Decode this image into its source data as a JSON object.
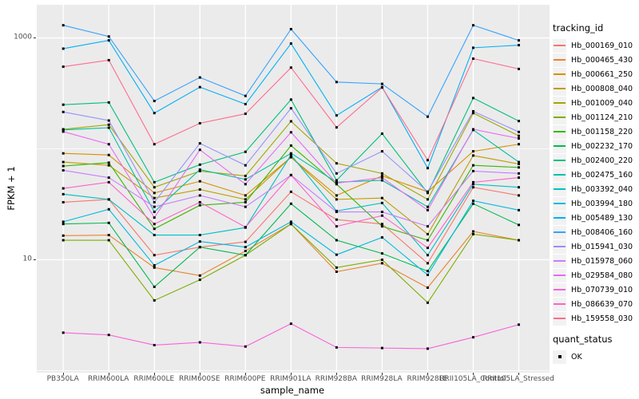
{
  "figure": {
    "axes": {
      "x": {
        "title": "sample_name"
      },
      "y": {
        "title": "FPKM + 1",
        "scale": "log10",
        "ticks": [
          {
            "label": "1000",
            "value": 1000
          },
          {
            "label": "10",
            "value": 10
          }
        ]
      }
    },
    "legend": {
      "tracking_title": "tracking_id",
      "quant_title": "quant_status",
      "quant_items": [
        {
          "label": "OK",
          "marker": "black-square-point-icon"
        }
      ]
    },
    "style": {
      "panel_bg": "#EBEBEB",
      "grid_color": "#FFFFFF",
      "tick_text_color": "#4D4D4D",
      "point_color": "#000000"
    }
  },
  "chart_data": {
    "type": "line",
    "title": "",
    "xlabel": "sample_name",
    "ylabel": "FPKM + 1",
    "yscale": "log10",
    "ylim": [
      1.4,
      1600
    ],
    "grid": {
      "major_y": [
        10,
        1000
      ],
      "minor_y": [
        1,
        100
      ],
      "major_x": "every-category"
    },
    "legend_position": "right",
    "point_shape": "filled-black-square",
    "quant_status_all_points": "OK",
    "x": [
      "PB350LA",
      "RRIM600LA",
      "RRIM600LE",
      "RRIM600SE",
      "RRIM600PE",
      "RRIM901LA",
      "RRIM928BA",
      "RRIM928LA",
      "RRIM928LE",
      "RRII105LA_Control",
      "RRII105LA_Stressed"
    ],
    "series": [
      {
        "name": "Hb_000169_010",
        "color": "#F8766D",
        "values": [
          33,
          35,
          11,
          13,
          14.5,
          41,
          23,
          21,
          9.3,
          45,
          38
        ]
      },
      {
        "name": "Hb_000465_430",
        "color": "#EA8331",
        "values": [
          16.5,
          16.7,
          8.5,
          7.2,
          12,
          21,
          7.8,
          9.3,
          5.6,
          18,
          15
        ]
      },
      {
        "name": "Hb_000661_250",
        "color": "#D89000",
        "values": [
          91,
          88,
          40,
          51,
          38,
          84,
          38,
          57,
          41,
          95,
          110
        ]
      },
      {
        "name": "Hb_000808_040",
        "color": "#C09B00",
        "values": [
          76,
          71,
          36,
          43,
          35,
          84,
          35,
          36,
          17,
          87,
          73
        ]
      },
      {
        "name": "Hb_001009_040",
        "color": "#A3A500",
        "values": [
          150,
          165,
          45,
          63,
          57,
          177,
          74,
          60,
          35,
          210,
          131
        ]
      },
      {
        "name": "Hb_001124_210",
        "color": "#7CAE00",
        "values": [
          15,
          15,
          4.3,
          6.6,
          11,
          21,
          8.5,
          10,
          4.1,
          17,
          15
        ]
      },
      {
        "name": "Hb_001158_220",
        "color": "#39B600",
        "values": [
          70,
          75,
          19,
          31,
          33,
          107,
          48,
          20,
          15,
          71,
          68
        ]
      },
      {
        "name": "Hb_002232_170",
        "color": "#00BB4E",
        "values": [
          21,
          21.5,
          5.7,
          13,
          11,
          32,
          15,
          11.4,
          7.9,
          32,
          20.6
        ]
      },
      {
        "name": "Hb_002400_220",
        "color": "#00BF7D",
        "values": [
          250,
          262,
          50,
          72,
          94,
          278,
          52,
          137,
          40,
          287,
          178
        ]
      },
      {
        "name": "Hb_002475_160",
        "color": "#00C1A3",
        "values": [
          148,
          155,
          27,
          65,
          53,
          91,
          50,
          52,
          30,
          148,
          76
        ]
      },
      {
        "name": "Hb_003392_040",
        "color": "#00BFC4",
        "values": [
          39,
          35,
          16.7,
          16.7,
          19.5,
          88,
          27.5,
          32.5,
          11,
          48,
          45
        ]
      },
      {
        "name": "Hb_003994_180",
        "color": "#00BADE",
        "values": [
          22,
          28.5,
          8.9,
          14.6,
          13,
          22,
          11.1,
          15.9,
          7.3,
          34,
          28
        ]
      },
      {
        "name": "Hb_005489_130",
        "color": "#00B0F6",
        "values": [
          800,
          950,
          210,
          360,
          253,
          890,
          200,
          360,
          67,
          815,
          860
        ]
      },
      {
        "name": "Hb_008406_160",
        "color": "#35A2FF",
        "values": [
          1300,
          1030,
          270,
          440,
          300,
          1200,
          400,
          385,
          195,
          1300,
          950
        ]
      },
      {
        "name": "Hb_015941_030",
        "color": "#9590FF",
        "values": [
          215,
          180,
          33,
          112,
          71,
          232,
          60,
          95,
          41,
          218,
          142
        ]
      },
      {
        "name": "Hb_015978_060",
        "color": "#C77CFF",
        "values": [
          64,
          55,
          30,
          38,
          30,
          58,
          27,
          27,
          20,
          63,
          60
        ]
      },
      {
        "name": "Hb_029584_080",
        "color": "#E76BF3",
        "values": [
          143,
          110,
          24,
          98,
          48,
          141,
          49,
          55,
          28,
          150,
          124
        ]
      },
      {
        "name": "Hb_070739_010",
        "color": "#FA62DB",
        "values": [
          2.2,
          2.1,
          1.7,
          1.8,
          1.65,
          2.65,
          1.62,
          1.6,
          1.58,
          2.0,
          2.6
        ]
      },
      {
        "name": "Hb_086639_070",
        "color": "#FF61C8",
        "values": [
          44,
          50,
          21,
          33,
          19.7,
          58,
          20,
          25,
          12.8,
          50,
          55
        ]
      },
      {
        "name": "Hb_159558_030",
        "color": "#FF6C90",
        "values": [
          550,
          630,
          110,
          170,
          207,
          540,
          156,
          357,
          79,
          650,
          525
        ]
      }
    ]
  }
}
